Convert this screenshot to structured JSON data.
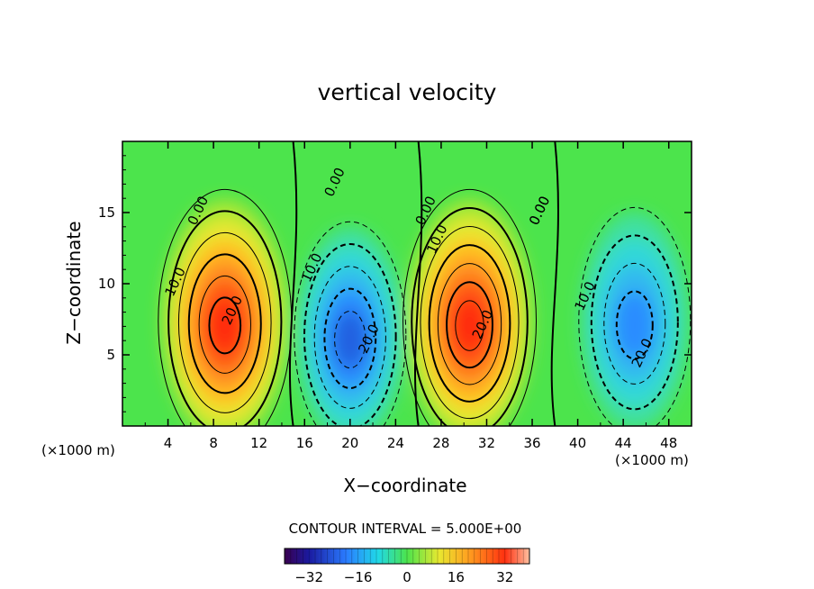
{
  "chart_data": {
    "type": "heatmap",
    "title": "vertical velocity",
    "xlabel": "X−coordinate",
    "ylabel": "Z−coordinate",
    "x_units": "(×1000 m)",
    "xlim": [
      0,
      50
    ],
    "ylim": [
      0,
      20
    ],
    "x_ticks": [
      4,
      8,
      12,
      16,
      20,
      24,
      28,
      32,
      36,
      40,
      44,
      48
    ],
    "y_ticks": [
      5,
      10,
      15
    ],
    "contour_interval_text": "CONTOUR INTERVAL = 5.000E+00",
    "contour_interval": 5,
    "colorbar": {
      "ticks": [
        -32,
        -16,
        0,
        16,
        32
      ],
      "range": [
        -40,
        40
      ]
    },
    "contour_labels": [
      "0.00",
      "10.0",
      "20.0",
      "0.00",
      "10.0",
      "20.0",
      "0.00",
      "10.0",
      "20.0",
      "0.00",
      "0.00",
      "10.0",
      "20.0"
    ],
    "features": [
      {
        "type": "updraft",
        "x": 9,
        "z": 7,
        "peak": 28
      },
      {
        "type": "downdraft",
        "x": 20,
        "z": 6,
        "peak": -22
      },
      {
        "type": "updraft",
        "x": 30.5,
        "z": 7,
        "peak": 33
      },
      {
        "type": "downdraft",
        "x": 45,
        "z": 7,
        "peak": -20
      }
    ]
  }
}
